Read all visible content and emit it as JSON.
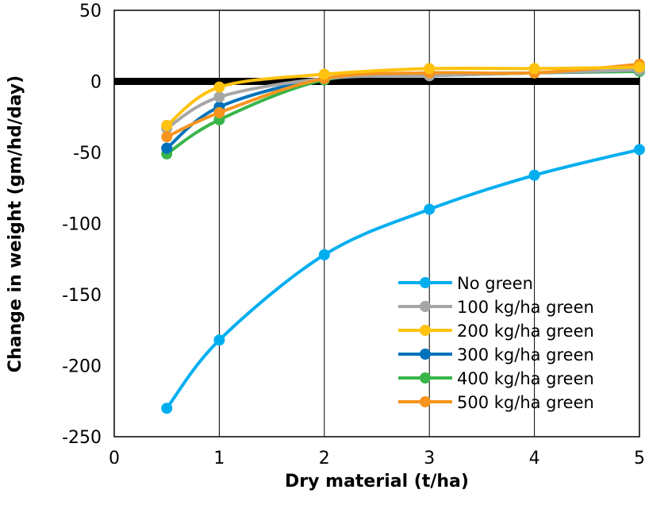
{
  "chart_data": {
    "type": "line",
    "title": "",
    "xlabel": "Dry material (t/ha)",
    "ylabel": "Change in weight (gm/hd/day)",
    "xlim": [
      0,
      5
    ],
    "ylim": [
      -250,
      50
    ],
    "xticks": [
      0,
      1,
      2,
      3,
      4,
      5
    ],
    "yticks": [
      -250,
      -200,
      -150,
      -100,
      -50,
      0,
      50
    ],
    "grid": "vertical",
    "legend_position": "bottom-right",
    "x": [
      0.5,
      1,
      2,
      3,
      4,
      5
    ],
    "series": [
      {
        "name": "No green",
        "color": "#00aeef",
        "values": [
          -230,
          -182,
          -122,
          -90,
          -66,
          -48
        ]
      },
      {
        "name": "100 kg/ha green",
        "color": "#a6a6a6",
        "values": [
          -33,
          -11,
          2,
          4,
          6,
          8
        ]
      },
      {
        "name": "200 kg/ha green",
        "color": "#ffc20e",
        "values": [
          -31,
          -4,
          5,
          9,
          9,
          10
        ]
      },
      {
        "name": "300 kg/ha green",
        "color": "#0072bc",
        "values": [
          -47,
          -18,
          2,
          5,
          6,
          8
        ]
      },
      {
        "name": "400 kg/ha green",
        "color": "#39b54a",
        "values": [
          -51,
          -27,
          1,
          4,
          6,
          7
        ]
      },
      {
        "name": "500 kg/ha green",
        "color": "#f7941d",
        "values": [
          -39,
          -22,
          2,
          6,
          6,
          12
        ]
      }
    ]
  }
}
